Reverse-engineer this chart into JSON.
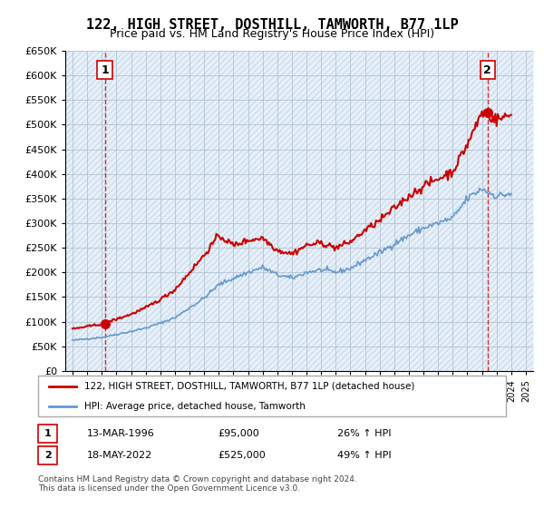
{
  "title": "122, HIGH STREET, DOSTHILL, TAMWORTH, B77 1LP",
  "subtitle": "Price paid vs. HM Land Registry's House Price Index (HPI)",
  "legend_line1": "122, HIGH STREET, DOSTHILL, TAMWORTH, B77 1LP (detached house)",
  "legend_line2": "HPI: Average price, detached house, Tamworth",
  "transaction1_label": "1",
  "transaction1_date": "13-MAR-1996",
  "transaction1_price": "£95,000",
  "transaction1_hpi": "26% ↑ HPI",
  "transaction1_year": 1996.2,
  "transaction1_value": 95000,
  "transaction2_label": "2",
  "transaction2_date": "18-MAY-2022",
  "transaction2_price": "£525,000",
  "transaction2_hpi": "49% ↑ HPI",
  "transaction2_year": 2022.38,
  "transaction2_value": 525000,
  "price_color": "#cc0000",
  "hpi_color": "#6699cc",
  "background_color": "#ddeeff",
  "plot_bg_color": "#ffffff",
  "ylim": [
    0,
    650000
  ],
  "yticks": [
    0,
    50000,
    100000,
    150000,
    200000,
    250000,
    300000,
    350000,
    400000,
    450000,
    500000,
    550000,
    600000,
    650000
  ],
  "ytick_labels": [
    "£0",
    "£50K",
    "£100K",
    "£150K",
    "£200K",
    "£250K",
    "£300K",
    "£350K",
    "£400K",
    "£450K",
    "£500K",
    "£550K",
    "£600K",
    "£650K"
  ],
  "xlim": [
    1993.5,
    2025.5
  ],
  "footer": "Contains HM Land Registry data © Crown copyright and database right 2024.\nThis data is licensed under the Open Government Licence v3.0.",
  "hpi_years": [
    1994,
    1995,
    1996,
    1997,
    1998,
    1999,
    2000,
    2001,
    2002,
    2003,
    2004,
    2005,
    2006,
    2007,
    2008,
    2009,
    2010,
    2011,
    2012,
    2013,
    2014,
    2015,
    2016,
    2017,
    2018,
    2019,
    2020,
    2021,
    2022,
    2023,
    2024
  ],
  "hpi_values": [
    62000,
    65000,
    68000,
    74000,
    80000,
    87000,
    97000,
    108000,
    128000,
    148000,
    175000,
    188000,
    200000,
    210000,
    195000,
    188000,
    200000,
    205000,
    200000,
    208000,
    225000,
    240000,
    258000,
    275000,
    290000,
    300000,
    310000,
    350000,
    370000,
    355000,
    360000
  ],
  "price_years": [
    1994,
    1995,
    1996,
    1997,
    1998,
    1999,
    2000,
    2001,
    2002,
    2003,
    2004,
    2005,
    2006,
    2007,
    2008,
    2009,
    2010,
    2011,
    2012,
    2013,
    2014,
    2015,
    2016,
    2017,
    2018,
    2019,
    2020,
    2021,
    2022,
    2023,
    2024
  ],
  "price_values": [
    85000,
    90000,
    95000,
    105000,
    115000,
    128000,
    145000,
    165000,
    200000,
    235000,
    275000,
    255000,
    265000,
    270000,
    245000,
    238000,
    255000,
    260000,
    250000,
    262000,
    285000,
    305000,
    330000,
    355000,
    375000,
    390000,
    405000,
    460000,
    525000,
    510000,
    520000
  ]
}
